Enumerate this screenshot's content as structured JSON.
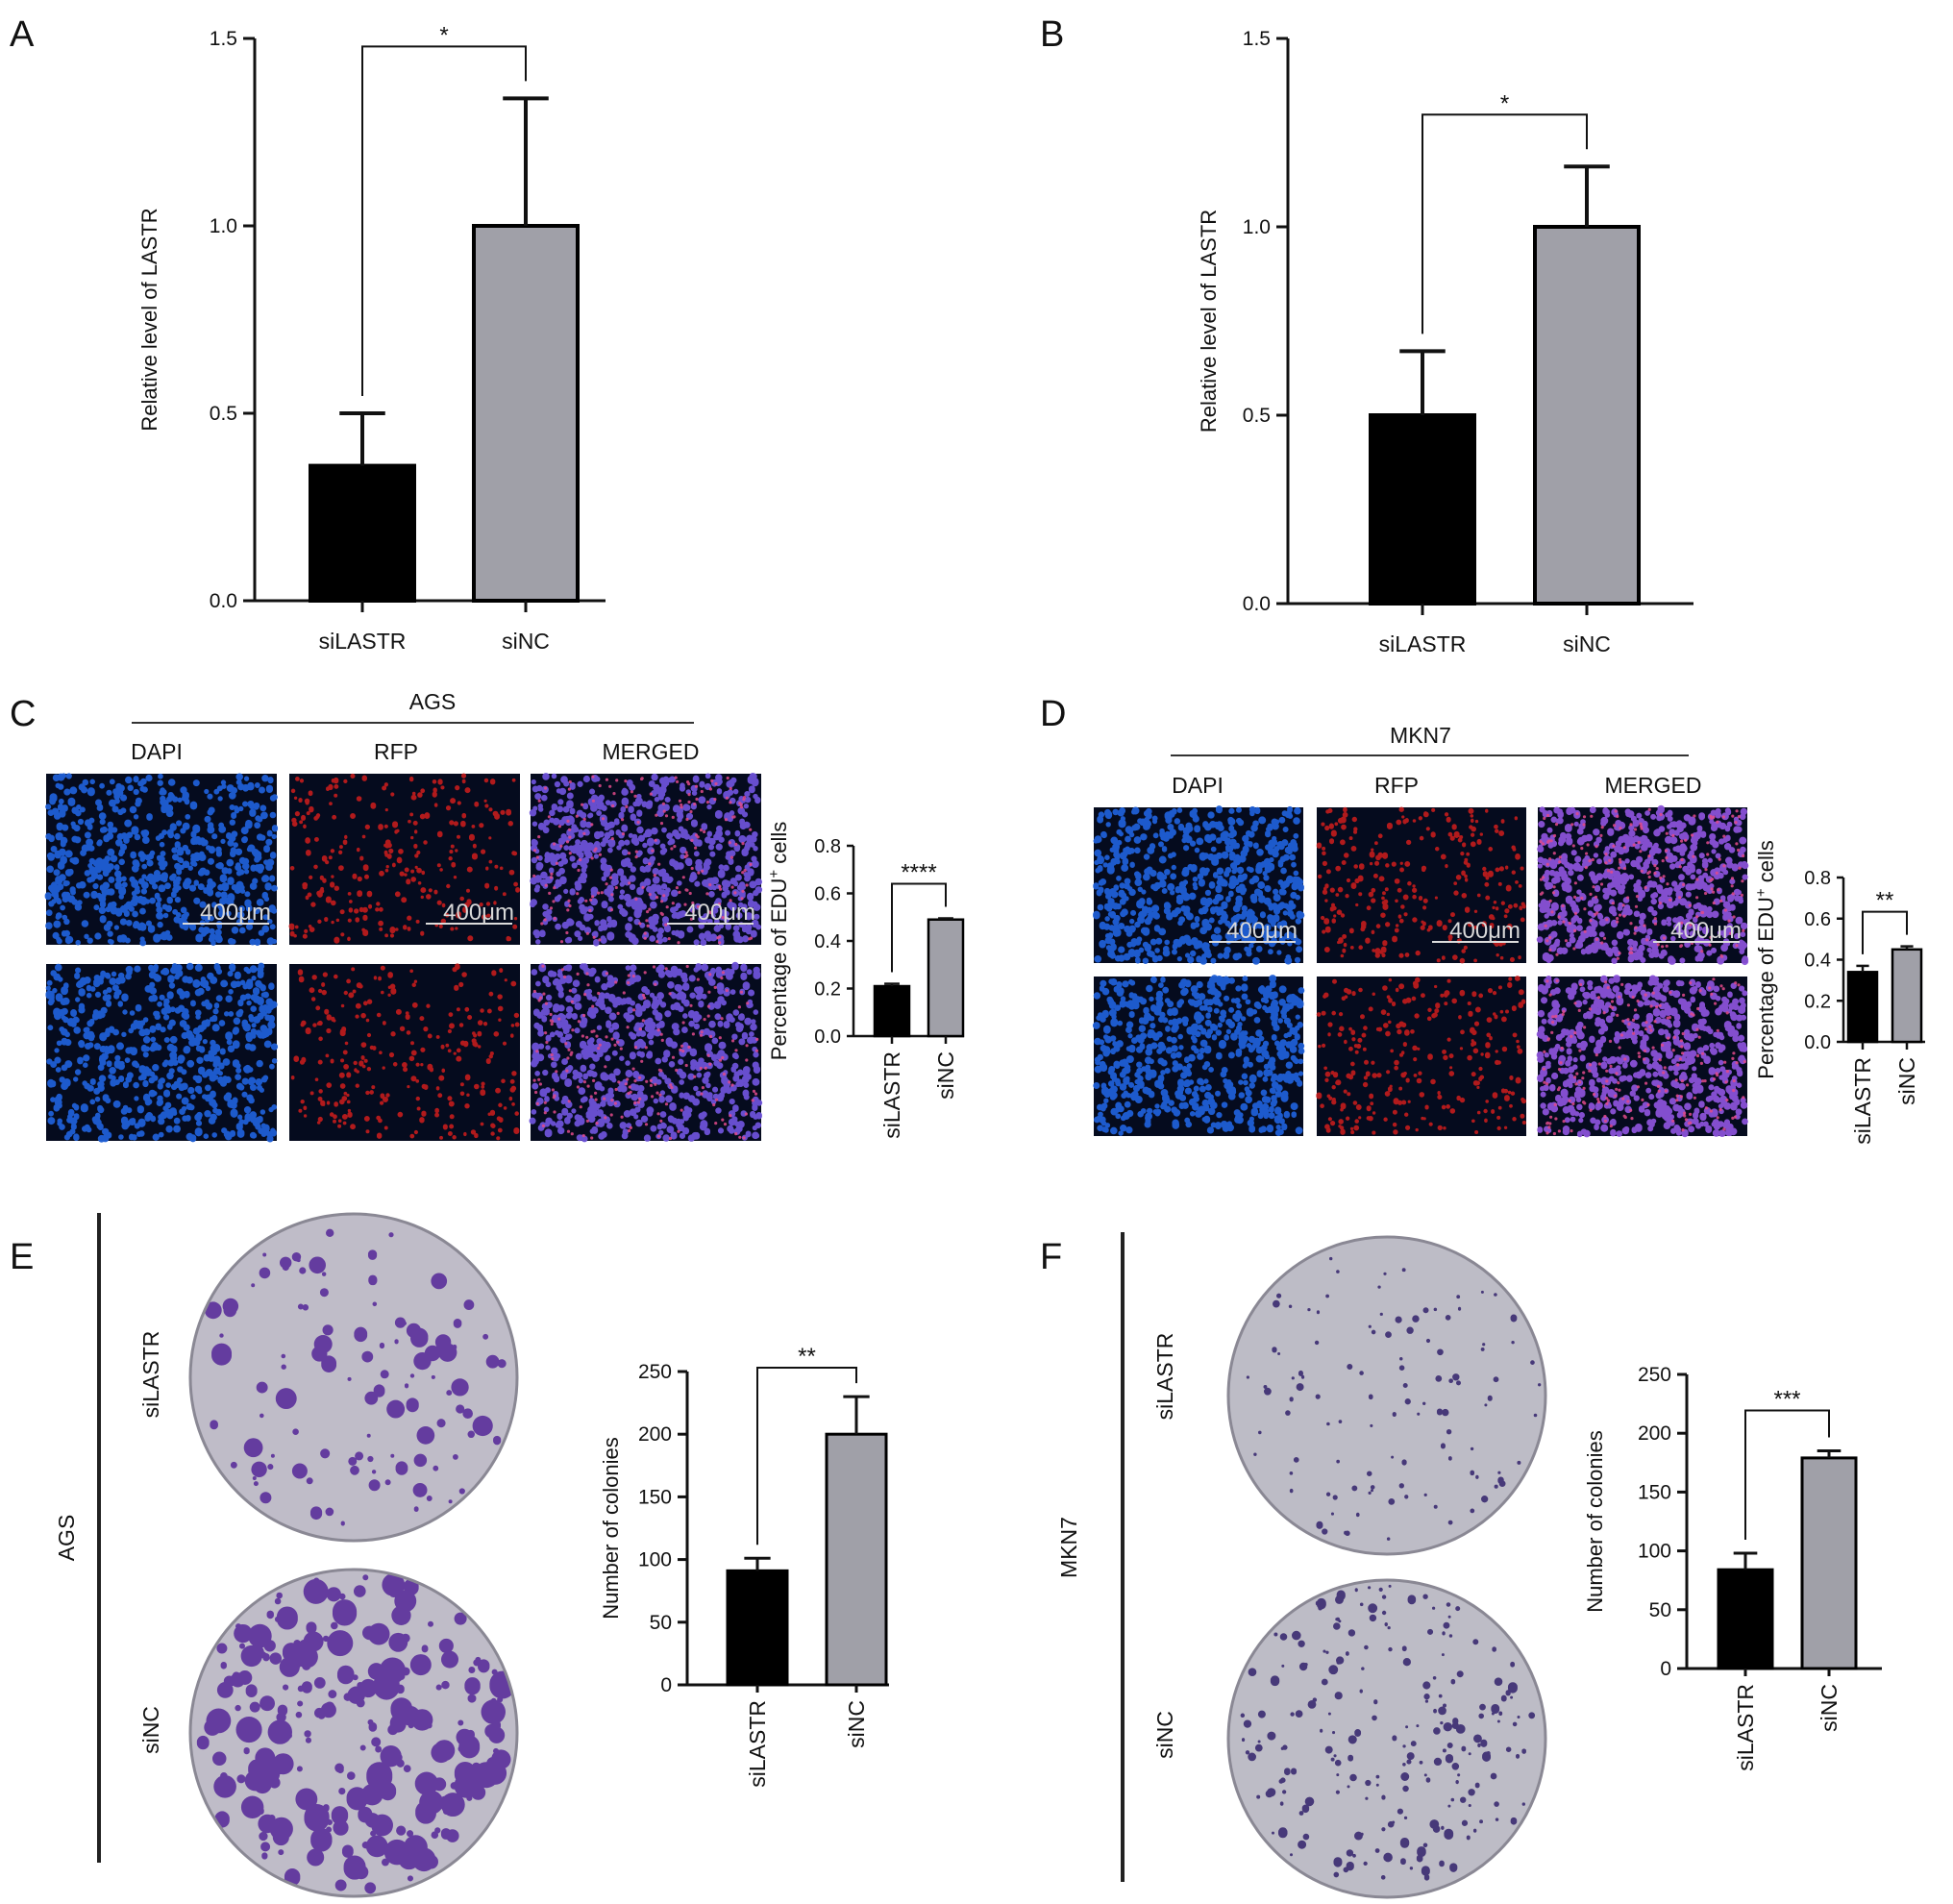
{
  "panels": {
    "a": "A",
    "b": "B",
    "c": "C",
    "d": "D",
    "e": "E",
    "f": "F"
  },
  "micro": {
    "c": {
      "group": "AGS",
      "cols": [
        "DAPI",
        "RFP",
        "MERGED"
      ],
      "scalebar": "400μm",
      "colors": {
        "dapi": "#1f5fd6",
        "rfp": "#c41c1c",
        "merged": "#6d52d8",
        "bg": "#050b1e"
      }
    },
    "d": {
      "group": "MKN7",
      "cols": [
        "DAPI",
        "RFP",
        "MERGED"
      ],
      "scalebar": "400μm",
      "colors": {
        "dapi": "#1f5fd6",
        "rfp": "#c41c1c",
        "merged": "#8a52d8",
        "bg": "#050b1e"
      }
    }
  },
  "plates": {
    "e": {
      "group": "AGS",
      "rows": [
        "siLASTR",
        "siNC"
      ],
      "dish_color": "#bfbcc8",
      "colony_color": "#5a2d9a"
    },
    "f": {
      "group": "MKN7",
      "rows": [
        "siLASTR",
        "siNC"
      ],
      "dish_color": "#bdbcc6",
      "colony_color": "#3a2a70"
    }
  },
  "colors": {
    "siLASTR": "#000000",
    "siNC": "#a0a0a8"
  },
  "chart_data": [
    {
      "panel": "A",
      "type": "bar",
      "categories": [
        "siLASTR",
        "siNC"
      ],
      "values": [
        0.36,
        1.0
      ],
      "errors": [
        0.14,
        0.34
      ],
      "ylabel": "Relative level of LASTR",
      "xlabel": "",
      "ylim": [
        0,
        1.5
      ],
      "yticks": [
        "0.0",
        "0.5",
        "1.0",
        "1.5"
      ],
      "significance": "*",
      "grid": false
    },
    {
      "panel": "B",
      "type": "bar",
      "categories": [
        "siLASTR",
        "siNC"
      ],
      "values": [
        0.5,
        1.0
      ],
      "errors": [
        0.17,
        0.16
      ],
      "ylabel": "Relative level of LASTR",
      "xlabel": "",
      "ylim": [
        0,
        1.5
      ],
      "yticks": [
        "0.0",
        "0.5",
        "1.0",
        "1.5"
      ],
      "significance": "*",
      "grid": false
    },
    {
      "panel": "C",
      "type": "bar",
      "categories": [
        "siLASTR",
        "siNC"
      ],
      "values": [
        0.21,
        0.49
      ],
      "errors": [
        0.01,
        0.005
      ],
      "ylabel": "Percentage of EDU+ cells",
      "xlabel": "",
      "ylim": [
        0,
        0.8
      ],
      "yticks": [
        "0.0",
        "0.2",
        "0.4",
        "0.6",
        "0.8"
      ],
      "significance": "****",
      "grid": false
    },
    {
      "panel": "D",
      "type": "bar",
      "categories": [
        "siLASTR",
        "siNC"
      ],
      "values": [
        0.34,
        0.45
      ],
      "errors": [
        0.03,
        0.015
      ],
      "ylabel": "Percentage of EDU+ cells",
      "xlabel": "",
      "ylim": [
        0,
        0.8
      ],
      "yticks": [
        "0.0",
        "0.2",
        "0.4",
        "0.6",
        "0.8"
      ],
      "significance": "**",
      "grid": false
    },
    {
      "panel": "E",
      "type": "bar",
      "categories": [
        "siLASTR",
        "siNC"
      ],
      "values": [
        91,
        200
      ],
      "errors": [
        10,
        30
      ],
      "ylabel": "Number of colonies",
      "xlabel": "",
      "ylim": [
        0,
        250
      ],
      "yticks": [
        "0",
        "50",
        "100",
        "150",
        "200",
        "250"
      ],
      "significance": "**",
      "grid": false
    },
    {
      "panel": "F",
      "type": "bar",
      "categories": [
        "siLASTR",
        "siNC"
      ],
      "values": [
        84,
        179
      ],
      "errors": [
        14,
        6
      ],
      "ylabel": "Number of colonies",
      "xlabel": "",
      "ylim": [
        0,
        250
      ],
      "yticks": [
        "0",
        "50",
        "100",
        "150",
        "200",
        "250"
      ],
      "significance": "***",
      "grid": false
    }
  ]
}
